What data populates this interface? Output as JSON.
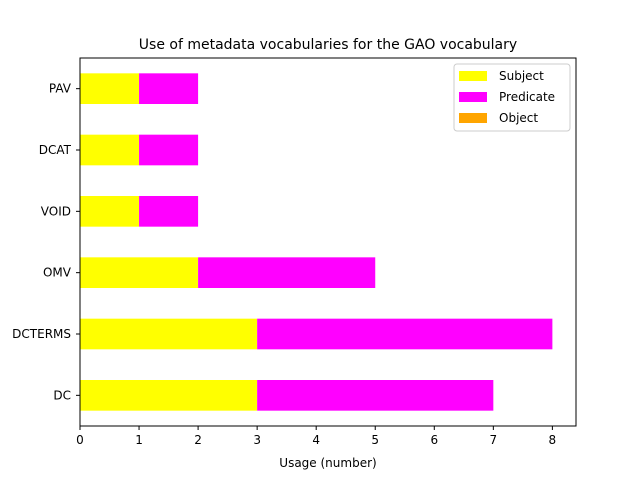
{
  "chart_data": {
    "type": "bar",
    "orientation": "horizontal",
    "stacked": true,
    "title": "Use of metadata vocabularies for the GAO vocabulary",
    "xlabel": "Usage (number)",
    "ylabel": "",
    "xlim": [
      0,
      8.4
    ],
    "x_ticks": [
      0,
      1,
      2,
      3,
      4,
      5,
      6,
      7,
      8
    ],
    "grid": false,
    "legend_position": "top-right",
    "categories": [
      "DC",
      "DCTERMS",
      "OMV",
      "VOID",
      "DCAT",
      "PAV"
    ],
    "series": [
      {
        "name": "Subject",
        "color": "#ffff00",
        "values": [
          3,
          3,
          2,
          1,
          1,
          1
        ]
      },
      {
        "name": "Predicate",
        "color": "#ff00ff",
        "values": [
          4,
          5,
          3,
          1,
          1,
          1
        ]
      },
      {
        "name": "Object",
        "color": "#ffa500",
        "values": [
          0,
          0,
          0,
          0,
          0,
          0
        ]
      }
    ]
  }
}
